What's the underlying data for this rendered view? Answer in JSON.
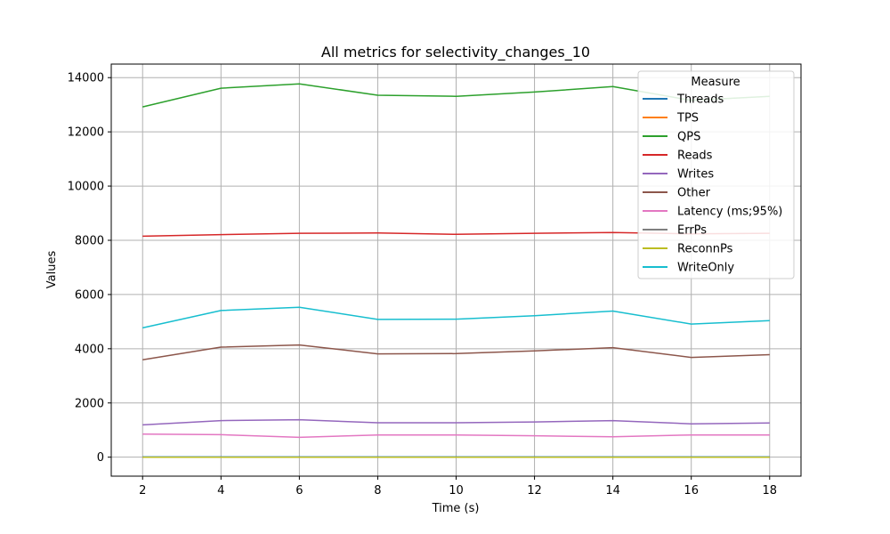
{
  "chart_data": {
    "type": "line",
    "title": "All metrics for selectivity_changes_10",
    "xlabel": "Time (s)",
    "ylabel": "Values",
    "x": [
      2,
      4,
      6,
      8,
      10,
      12,
      14,
      16,
      18
    ],
    "xticks": [
      2,
      4,
      6,
      8,
      10,
      12,
      14,
      16,
      18
    ],
    "yticks": [
      0,
      2000,
      4000,
      6000,
      8000,
      10000,
      12000,
      14000
    ],
    "xlim": [
      1.2,
      18.8
    ],
    "ylim": [
      -700,
      14500
    ],
    "grid": true,
    "legend": {
      "title": "Measure",
      "placement": "top-right"
    },
    "series": [
      {
        "name": "Threads",
        "color": "#1f77b4",
        "values": [
          10,
          10,
          10,
          10,
          10,
          10,
          10,
          10,
          10
        ]
      },
      {
        "name": "TPS",
        "color": "#ff7f0e",
        "values": [
          0,
          0,
          0,
          0,
          0,
          0,
          0,
          0,
          0
        ]
      },
      {
        "name": "QPS",
        "color": "#2ca02c",
        "values": [
          12920,
          13610,
          13770,
          13350,
          13310,
          13470,
          13670,
          13160,
          13310
        ]
      },
      {
        "name": "Reads",
        "color": "#d62728",
        "values": [
          8150,
          8210,
          8260,
          8270,
          8220,
          8260,
          8290,
          8240,
          8260
        ]
      },
      {
        "name": "Writes",
        "color": "#9467bd",
        "values": [
          1190,
          1350,
          1380,
          1270,
          1270,
          1300,
          1350,
          1230,
          1260
        ]
      },
      {
        "name": "Other",
        "color": "#8c564b",
        "values": [
          3590,
          4060,
          4140,
          3810,
          3820,
          3920,
          4040,
          3680,
          3780
        ]
      },
      {
        "name": "Latency (ms;95%)",
        "color": "#e377c2",
        "values": [
          850,
          830,
          730,
          820,
          820,
          790,
          750,
          820,
          820
        ]
      },
      {
        "name": "ErrPs",
        "color": "#7f7f7f",
        "values": [
          0,
          0,
          0,
          0,
          0,
          0,
          0,
          0,
          0
        ]
      },
      {
        "name": "ReconnPs",
        "color": "#bcbd22",
        "values": [
          0,
          0,
          0,
          0,
          0,
          0,
          0,
          0,
          0
        ]
      },
      {
        "name": "WriteOnly",
        "color": "#17becf",
        "values": [
          4770,
          5410,
          5530,
          5080,
          5090,
          5220,
          5390,
          4910,
          5040
        ]
      }
    ]
  }
}
